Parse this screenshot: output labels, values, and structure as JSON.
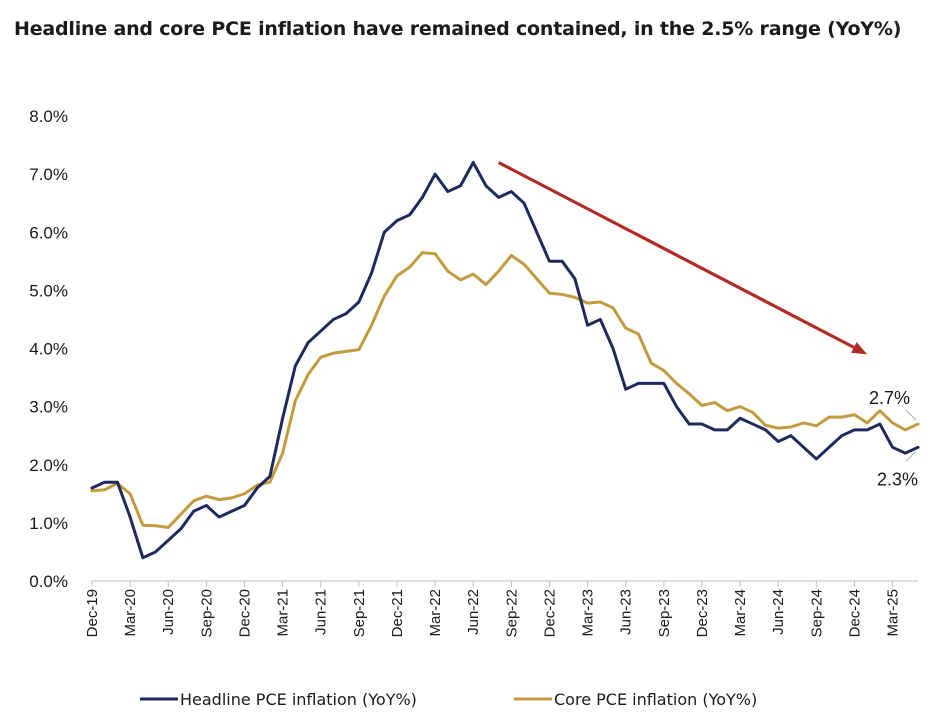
{
  "chart_data": {
    "type": "line",
    "title": "Headline and core PCE inflation have remained contained, in the 2.5% range (YoY%)",
    "xlabel": "",
    "ylabel": "",
    "ylim": [
      0,
      8
    ],
    "yticks": [
      "0.0%",
      "1.0%",
      "2.0%",
      "3.0%",
      "4.0%",
      "5.0%",
      "6.0%",
      "7.0%",
      "8.0%"
    ],
    "x": [
      "Dec-19",
      "Jan-20",
      "Feb-20",
      "Mar-20",
      "Apr-20",
      "May-20",
      "Jun-20",
      "Jul-20",
      "Aug-20",
      "Sep-20",
      "Oct-20",
      "Nov-20",
      "Dec-20",
      "Jan-21",
      "Feb-21",
      "Mar-21",
      "Apr-21",
      "May-21",
      "Jun-21",
      "Jul-21",
      "Aug-21",
      "Sep-21",
      "Oct-21",
      "Nov-21",
      "Dec-21",
      "Jan-22",
      "Feb-22",
      "Mar-22",
      "Apr-22",
      "May-22",
      "Jun-22",
      "Jul-22",
      "Aug-22",
      "Sep-22",
      "Oct-22",
      "Nov-22",
      "Dec-22",
      "Jan-23",
      "Feb-23",
      "Mar-23",
      "Apr-23",
      "May-23",
      "Jun-23",
      "Jul-23",
      "Aug-23",
      "Sep-23",
      "Oct-23",
      "Nov-23",
      "Dec-23",
      "Jan-24",
      "Feb-24",
      "Mar-24",
      "Apr-24",
      "May-24",
      "Jun-24",
      "Jul-24",
      "Aug-24",
      "Sep-24",
      "Oct-24",
      "Nov-24",
      "Dec-24",
      "Jan-25",
      "Feb-25",
      "Mar-25",
      "Apr-25",
      "May-25"
    ],
    "xtick_labels": [
      "Dec-19",
      "Mar-20",
      "Jun-20",
      "Sep-20",
      "Dec-20",
      "Mar-21",
      "Jun-21",
      "Sep-21",
      "Dec-21",
      "Mar-22",
      "Jun-22",
      "Sep-22",
      "Dec-22",
      "Mar-23",
      "Jun-23",
      "Sep-23",
      "Dec-23",
      "Mar-24",
      "Jun-24",
      "Sep-24",
      "Dec-24",
      "Mar-25"
    ],
    "series": [
      {
        "name": "Headline PCE inflation (YoY%)",
        "color": "#1f2a5c",
        "values": [
          1.6,
          1.7,
          1.7,
          1.1,
          0.4,
          0.5,
          0.7,
          0.9,
          1.2,
          1.3,
          1.1,
          1.2,
          1.3,
          1.6,
          1.8,
          2.8,
          3.7,
          4.1,
          4.3,
          4.5,
          4.6,
          4.8,
          5.3,
          6.0,
          6.2,
          6.3,
          6.6,
          7.0,
          6.7,
          6.8,
          7.2,
          6.8,
          6.6,
          6.7,
          6.5,
          6.0,
          5.5,
          5.5,
          5.2,
          4.4,
          4.5,
          4.0,
          3.3,
          3.4,
          3.4,
          3.4,
          3.0,
          2.7,
          2.7,
          2.6,
          2.6,
          2.8,
          2.7,
          2.6,
          2.4,
          2.5,
          2.3,
          2.1,
          2.3,
          2.5,
          2.6,
          2.6,
          2.7,
          2.3,
          2.2,
          2.3
        ]
      },
      {
        "name": "Core PCE inflation (YoY%)",
        "color": "#c29b3f",
        "values": [
          1.55,
          1.57,
          1.68,
          1.5,
          0.96,
          0.95,
          0.92,
          1.15,
          1.38,
          1.46,
          1.4,
          1.43,
          1.5,
          1.65,
          1.7,
          2.2,
          3.1,
          3.55,
          3.85,
          3.92,
          3.95,
          3.98,
          4.4,
          4.9,
          5.25,
          5.4,
          5.65,
          5.63,
          5.33,
          5.18,
          5.28,
          5.1,
          5.33,
          5.6,
          5.45,
          5.2,
          4.95,
          4.93,
          4.88,
          4.78,
          4.8,
          4.7,
          4.35,
          4.25,
          3.75,
          3.62,
          3.4,
          3.22,
          3.02,
          3.07,
          2.93,
          3.0,
          2.9,
          2.68,
          2.63,
          2.65,
          2.72,
          2.67,
          2.82,
          2.82,
          2.86,
          2.72,
          2.93,
          2.72,
          2.6,
          2.7
        ]
      }
    ],
    "annotations": [
      {
        "text": "2.7%",
        "series": "Core PCE inflation (YoY%)"
      },
      {
        "text": "2.3%",
        "series": "Headline PCE inflation (YoY%)"
      }
    ],
    "trend_arrow": {
      "color": "#b22a25",
      "from": {
        "x": "Aug-22",
        "y": 7.2
      },
      "to": {
        "x": "Jan-25",
        "y": 3.9
      }
    },
    "grid": false,
    "legend": "bottom"
  }
}
